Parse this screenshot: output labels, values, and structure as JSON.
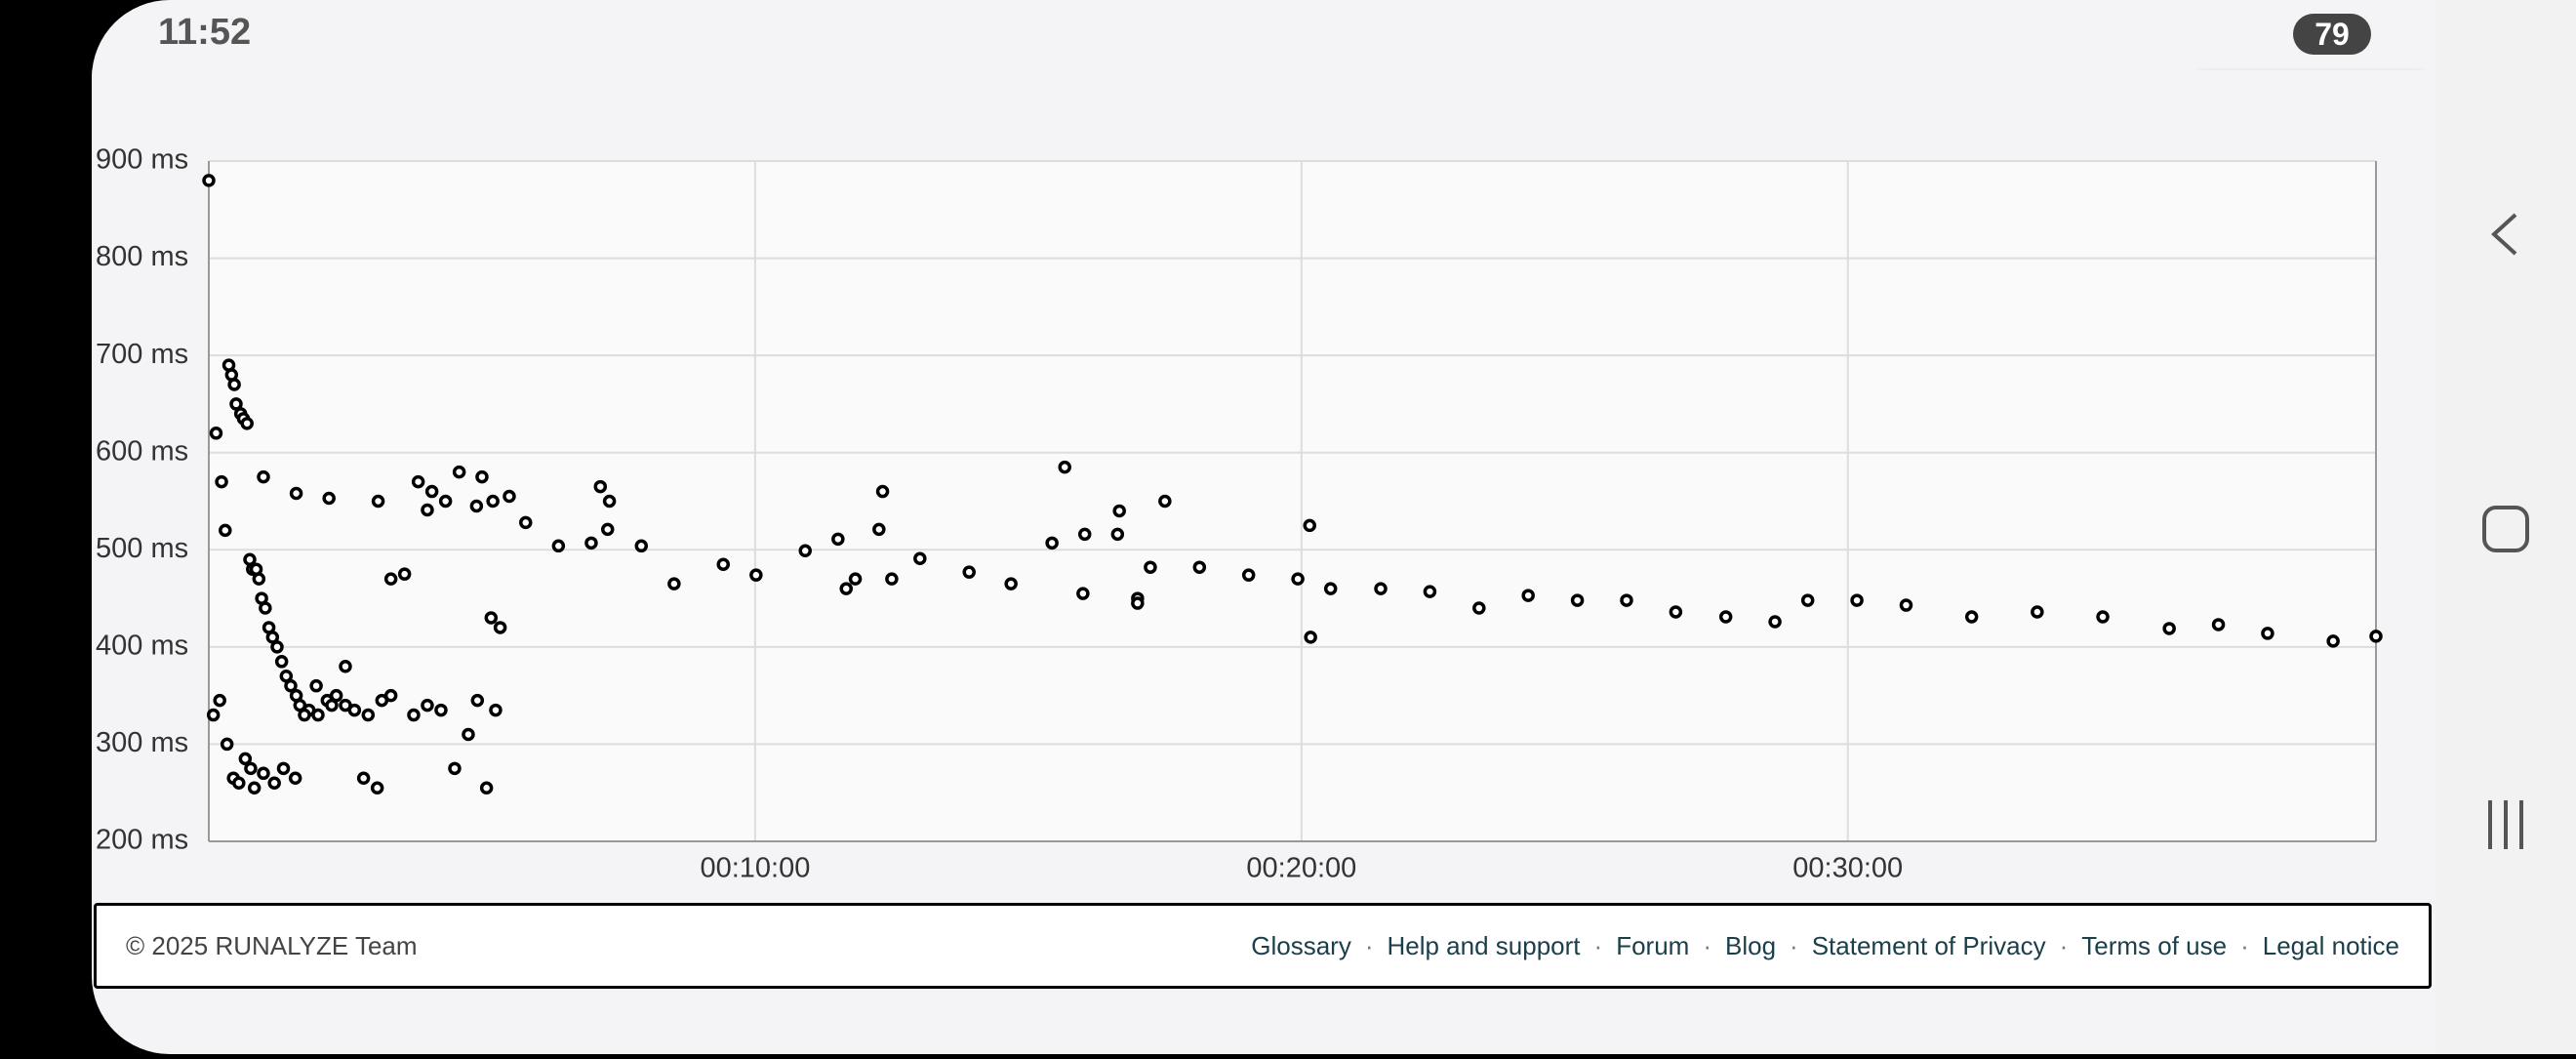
{
  "status_bar": {
    "time": "11:52",
    "battery": "79"
  },
  "chart_data": {
    "type": "scatter",
    "x": [
      0,
      8,
      14,
      18,
      22,
      25,
      28,
      30,
      35,
      38,
      42,
      45,
      48,
      52,
      55,
      58,
      62,
      66,
      70,
      75,
      80,
      85,
      90,
      96,
      100,
      110,
      120,
      130,
      140,
      150,
      160,
      175,
      190,
      200,
      215,
      230,
      245,
      260,
      275,
      300,
      310,
      320,
      330,
      5,
      12,
      20,
      27,
      33,
      40,
      46,
      50,
      60,
      72,
      82,
      95,
      105,
      118,
      135,
      150,
      170,
      185,
      200,
      225,
      240,
      255,
      270,
      285,
      295,
      305,
      315,
      60,
      96,
      132,
      186,
      240,
      294,
      312,
      348,
      384,
      420,
      438,
      475,
      511,
      565,
      601,
      655,
      691,
      736,
      781,
      835,
      881,
      926,
      962,
      998,
      1034,
      1088,
      1142,
      1196,
      1232,
      1287,
      1341,
      1395,
      1449,
      1503,
      1557,
      1611,
      1666,
      1720,
      1756,
      1810,
      1864,
      1936,
      2008,
      2080,
      2153,
      2207,
      2261,
      2333,
      2380,
      430,
      440,
      700,
      710,
      740,
      750,
      1000,
      1020,
      940,
      960,
      1020,
      1050,
      1209,
      1210
    ],
    "values": [
      880,
      620,
      570,
      520,
      690,
      680,
      670,
      650,
      640,
      635,
      630,
      490,
      480,
      480,
      470,
      450,
      440,
      420,
      410,
      400,
      385,
      370,
      360,
      350,
      340,
      335,
      330,
      345,
      350,
      340,
      335,
      330,
      345,
      470,
      475,
      570,
      560,
      550,
      580,
      575,
      430,
      420,
      555,
      330,
      345,
      300,
      265,
      260,
      285,
      275,
      255,
      270,
      260,
      275,
      265,
      330,
      360,
      340,
      380,
      265,
      255,
      350,
      330,
      340,
      335,
      275,
      310,
      345,
      255,
      335,
      575,
      558,
      553,
      550,
      541,
      545,
      550,
      528,
      504,
      507,
      521,
      504,
      465,
      485,
      474,
      499,
      511,
      521,
      491,
      477,
      465,
      507,
      516,
      516,
      482,
      482,
      474,
      470,
      460,
      460,
      457,
      440,
      453,
      448,
      448,
      436,
      431,
      426,
      448,
      448,
      443,
      431,
      436,
      431,
      419,
      423,
      414,
      406,
      411,
      565,
      550,
      460,
      470,
      560,
      470,
      540,
      450,
      585,
      455,
      445,
      550,
      525,
      410
    ],
    "xlim": [
      0,
      2380
    ],
    "ylim": [
      200,
      900
    ],
    "xticks": [
      {
        "value": 600,
        "label": "00:10:00"
      },
      {
        "value": 1200,
        "label": "00:20:00"
      },
      {
        "value": 1800,
        "label": "00:30:00"
      }
    ],
    "yticks": [
      {
        "value": 200,
        "label": "200 ms"
      },
      {
        "value": 300,
        "label": "300 ms"
      },
      {
        "value": 400,
        "label": "400 ms"
      },
      {
        "value": 500,
        "label": "500 ms"
      },
      {
        "value": 600,
        "label": "600 ms"
      },
      {
        "value": 700,
        "label": "700 ms"
      },
      {
        "value": 800,
        "label": "800 ms"
      },
      {
        "value": 900,
        "label": "900 ms"
      }
    ],
    "grid": true,
    "color": "#000000"
  },
  "footer": {
    "copyright": "© 2025 RUNALYZE Team",
    "links": [
      "Glossary",
      "Help and support",
      "Forum",
      "Blog",
      "Statement of Privacy",
      "Terms of use",
      "Legal notice"
    ]
  }
}
